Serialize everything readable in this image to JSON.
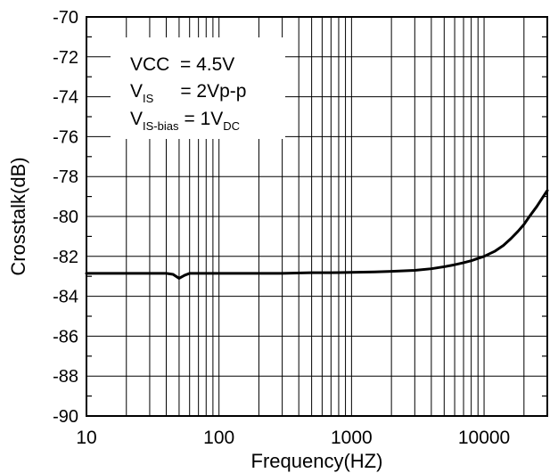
{
  "chart_data": {
    "type": "line",
    "title": "",
    "xlabel": "Frequency(HZ)",
    "ylabel": "Crosstalk(dB)",
    "x_scale": "log",
    "xlim": [
      10,
      30000
    ],
    "ylim": [
      -90,
      -70
    ],
    "x_ticks": [
      10,
      100,
      1000,
      10000
    ],
    "x_tick_labels": [
      "10",
      "100",
      "1000",
      "10000"
    ],
    "y_ticks": [
      -90,
      -88,
      -86,
      -84,
      -82,
      -80,
      -78,
      -76,
      -74,
      -72,
      -70
    ],
    "y_tick_labels": [
      "-90",
      "-88",
      "-86",
      "-84",
      "-82",
      "-80",
      "-78",
      "-76",
      "-74",
      "-72",
      "-70"
    ],
    "grid": true,
    "legend": {
      "placement": "top-left",
      "line1": {
        "text": "VCC  = 4.5V"
      },
      "line2": {
        "main": "V",
        "sub": "IS",
        "rest": "= 2Vp-p"
      },
      "line3": {
        "main": "V",
        "sub": "IS-bias",
        "rest": "= 1V",
        "sub2": "DC"
      }
    },
    "series": [
      {
        "x": [
          10,
          20,
          30,
          40,
          45,
          50,
          55,
          60,
          70,
          100,
          150,
          200,
          300,
          500,
          700,
          1000,
          1500,
          2000,
          3000,
          4000,
          5000,
          6000,
          7000,
          8000,
          9000,
          10000,
          12000,
          14000,
          16000,
          18000,
          20000,
          22000,
          25000,
          28000,
          30000
        ],
        "y": [
          -82.85,
          -82.85,
          -82.85,
          -82.85,
          -82.9,
          -83.1,
          -82.95,
          -82.85,
          -82.85,
          -82.85,
          -82.85,
          -82.85,
          -82.85,
          -82.82,
          -82.82,
          -82.8,
          -82.78,
          -82.75,
          -82.7,
          -82.62,
          -82.52,
          -82.42,
          -82.32,
          -82.22,
          -82.1,
          -82.0,
          -81.75,
          -81.45,
          -81.1,
          -80.75,
          -80.4,
          -80.0,
          -79.5,
          -79.0,
          -78.7
        ]
      }
    ]
  }
}
